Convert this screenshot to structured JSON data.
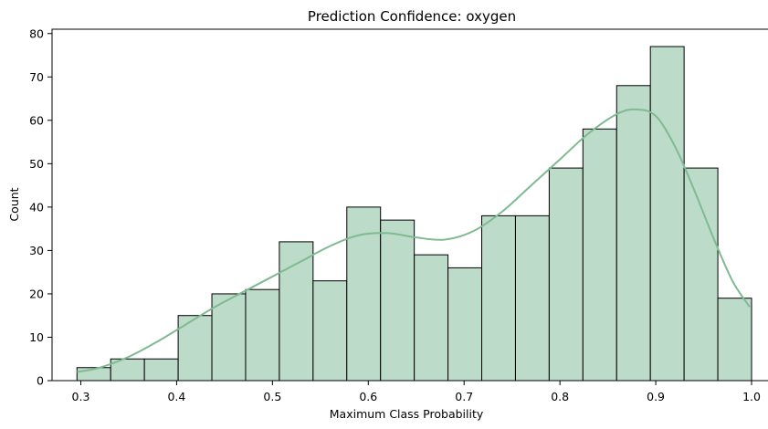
{
  "chart_data": {
    "type": "bar",
    "subtype": "histogram",
    "title": "Prediction Confidence: oxygen",
    "xlabel": "Maximum Class Probability",
    "ylabel": "Count",
    "xlim": [
      0.27,
      1.02
    ],
    "ylim": [
      0,
      81
    ],
    "xticks": [
      0.3,
      0.4,
      0.5,
      0.6,
      0.7,
      0.8,
      0.9,
      1.0
    ],
    "xtick_labels": [
      "0.3",
      "0.4",
      "0.5",
      "0.6",
      "0.7",
      "0.8",
      "0.9",
      "1.0"
    ],
    "yticks": [
      0,
      10,
      20,
      30,
      40,
      50,
      60,
      70,
      80
    ],
    "ytick_labels": [
      "0",
      "10",
      "20",
      "30",
      "40",
      "50",
      "60",
      "70",
      "80"
    ],
    "bin_start": 0.296,
    "bin_width": 0.0352,
    "counts": [
      3,
      5,
      5,
      15,
      20,
      21,
      32,
      23,
      40,
      37,
      29,
      26,
      38,
      38,
      49,
      58,
      68,
      77,
      49,
      19
    ],
    "kde": {
      "x": [
        0.296,
        0.32,
        0.35,
        0.38,
        0.41,
        0.44,
        0.47,
        0.5,
        0.53,
        0.56,
        0.59,
        0.62,
        0.65,
        0.68,
        0.71,
        0.74,
        0.77,
        0.8,
        0.83,
        0.86,
        0.88,
        0.9,
        0.92,
        0.94,
        0.96,
        0.98,
        0.998
      ],
      "y": [
        2,
        3,
        5.5,
        9,
        13,
        17,
        20.5,
        24,
        27.5,
        31,
        33.5,
        34,
        33,
        32.5,
        34.5,
        39,
        45,
        51,
        57,
        61.5,
        62.5,
        61,
        54,
        44,
        33,
        23,
        17
      ]
    },
    "colors": {
      "bar_fill": "#bcdbc8",
      "bar_edge": "#000000",
      "kde_line": "#7fba92"
    },
    "grid": false,
    "legend": "none"
  }
}
